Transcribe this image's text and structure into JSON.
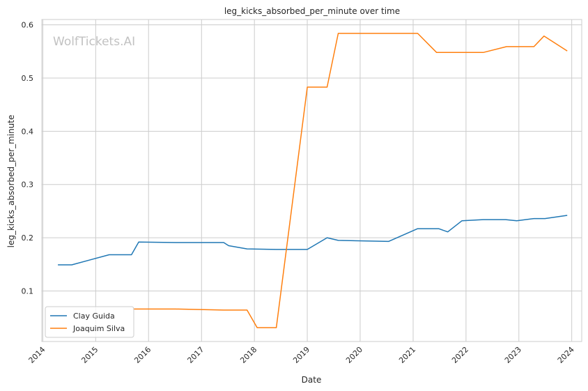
{
  "chart_data": {
    "type": "line",
    "title": "leg_kicks_absorbed_per_minute over time",
    "xlabel": "Date",
    "ylabel": "leg_kicks_absorbed_per_minute",
    "watermark": "WolfTickets.AI",
    "xlim": [
      "2013-12-25",
      "2024-03-10"
    ],
    "ylim": [
      0.005,
      0.61
    ],
    "x_ticks": [
      "2014",
      "2015",
      "2016",
      "2017",
      "2018",
      "2019",
      "2020",
      "2021",
      "2022",
      "2023",
      "2024"
    ],
    "y_ticks": [
      "0.1",
      "0.2",
      "0.3",
      "0.4",
      "0.5",
      "0.6"
    ],
    "grid": true,
    "legend_position": "lower-left",
    "series": [
      {
        "name": "Clay Guida",
        "color": "#1f77b4",
        "points": [
          [
            "2014-04-15",
            0.149
          ],
          [
            "2014-07-20",
            0.149
          ],
          [
            "2015-04-04",
            0.168
          ],
          [
            "2015-09-05",
            0.168
          ],
          [
            "2015-10-25",
            0.192
          ],
          [
            "2016-07-07",
            0.191
          ],
          [
            "2017-06-03",
            0.191
          ],
          [
            "2017-07-07",
            0.185
          ],
          [
            "2017-11-11",
            0.179
          ],
          [
            "2018-06-01",
            0.178
          ],
          [
            "2019-01-01",
            0.178
          ],
          [
            "2019-05-18",
            0.2
          ],
          [
            "2019-08-03",
            0.195
          ],
          [
            "2020-07-15",
            0.193
          ],
          [
            "2021-02-01",
            0.217
          ],
          [
            "2021-06-26",
            0.217
          ],
          [
            "2021-08-28",
            0.211
          ],
          [
            "2021-12-04",
            0.232
          ],
          [
            "2022-04-30",
            0.234
          ],
          [
            "2022-10-01",
            0.234
          ],
          [
            "2022-12-17",
            0.232
          ],
          [
            "2023-04-15",
            0.236
          ],
          [
            "2023-06-30",
            0.236
          ],
          [
            "2023-12-01",
            0.242
          ]
        ]
      },
      {
        "name": "Joaquim Silva",
        "color": "#ff7f0e",
        "points": [
          [
            "2015-09-15",
            0.066
          ],
          [
            "2016-07-07",
            0.066
          ],
          [
            "2017-06-03",
            0.064
          ],
          [
            "2017-11-11",
            0.064
          ],
          [
            "2018-01-20",
            0.031
          ],
          [
            "2018-06-01",
            0.031
          ],
          [
            "2019-01-01",
            0.483
          ],
          [
            "2019-05-18",
            0.483
          ],
          [
            "2019-08-03",
            0.584
          ],
          [
            "2021-02-01",
            0.584
          ],
          [
            "2021-06-12",
            0.548
          ],
          [
            "2022-04-30",
            0.548
          ],
          [
            "2022-10-08",
            0.559
          ],
          [
            "2023-04-15",
            0.559
          ],
          [
            "2023-06-24",
            0.579
          ],
          [
            "2023-12-01",
            0.551
          ]
        ]
      }
    ]
  }
}
